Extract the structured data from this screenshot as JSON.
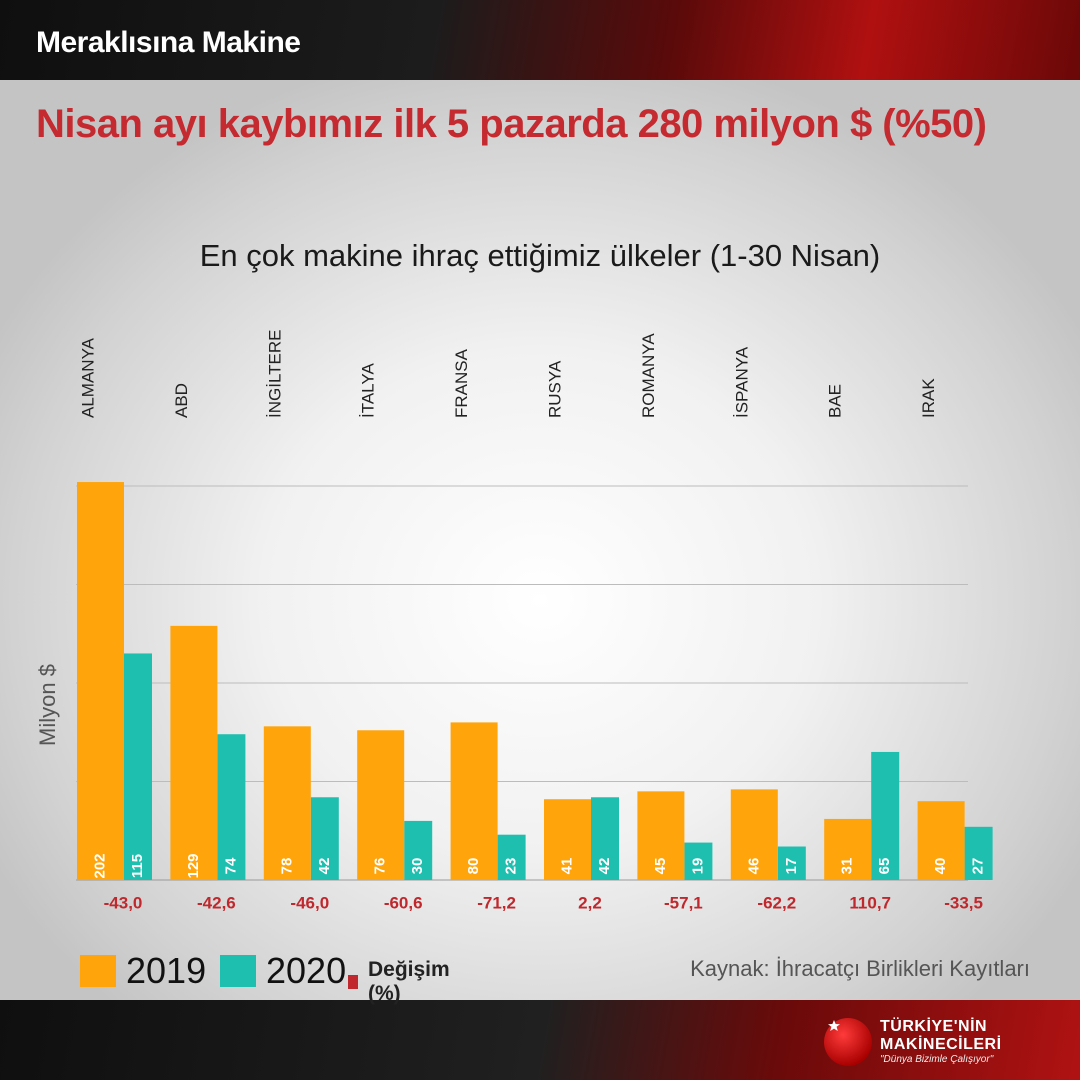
{
  "header": {
    "title": "Meraklısına Makine"
  },
  "headline": "Nisan ayı kaybımız ilk 5 pazarda 280 milyon $ (%50)",
  "source": "Kaynak: İhracatçı Birlikleri Kayıtları",
  "logo": {
    "line1": "TÜRKİYE'NİN",
    "line2": "MAKİNECİLERİ",
    "slogan": "\"Dünya Bizimle Çalışıyor\""
  },
  "colors": {
    "c2019": "#ffa40a",
    "c2020": "#1fbfb0",
    "change": "#c0282d"
  },
  "legend": [
    {
      "label": "2019",
      "color": "#ffa40a"
    },
    {
      "label": "2020",
      "color": "#1fbfb0"
    },
    {
      "label": "Değişim (%)",
      "color": "#c0282d"
    }
  ],
  "chart_data": {
    "type": "bar",
    "title": "En çok makine ihraç ettiğimiz ülkeler (1-30 Nisan)",
    "ylabel": "Milyon $",
    "xlabel": "",
    "ylim": [
      0,
      200
    ],
    "grid": true,
    "categories": [
      "ALMANYA",
      "ABD",
      "İNGİLTERE",
      "İTALYA",
      "FRANSA",
      "RUSYA",
      "ROMANYA",
      "İSPANYA",
      "BAE",
      "IRAK"
    ],
    "series": [
      {
        "name": "2019",
        "values": [
          202,
          129,
          78,
          76,
          80,
          41,
          45,
          46,
          31,
          40
        ]
      },
      {
        "name": "2020",
        "values": [
          115,
          74,
          42,
          30,
          23,
          42,
          19,
          17,
          65,
          27
        ]
      }
    ],
    "change": {
      "name": "Değişim (%)",
      "labels": [
        "-43,0",
        "-42,6",
        "-46,0",
        "-60,6",
        "-71,2",
        "2,2",
        "-57,1",
        "-62,2",
        "110,7",
        "-33,5"
      ]
    }
  }
}
